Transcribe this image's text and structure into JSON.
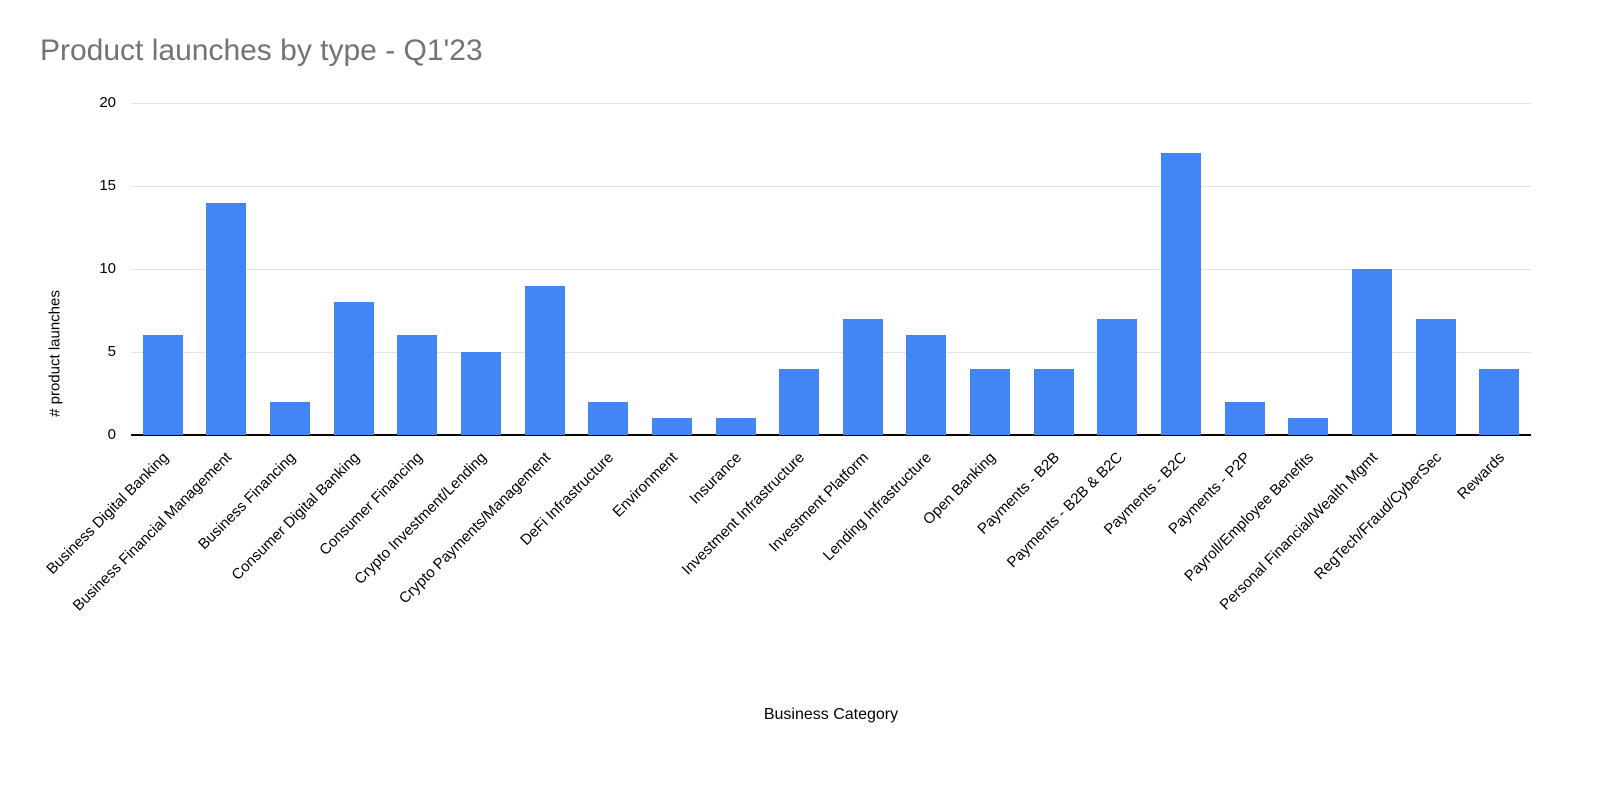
{
  "chart_data": {
    "type": "bar",
    "title": "Product launches by type - Q1'23",
    "xlabel": "Business Category",
    "ylabel": "# product launches",
    "categories": [
      "Business Digital Banking",
      "Business Financial Management",
      "Business Financing",
      "Consumer Digital Banking",
      "Consumer Financing",
      "Crypto Investment/Lending",
      "Crypto Payments/Management",
      "DeFi Infrastructure",
      "Environment",
      "Insurance",
      "Investment Infrastructure",
      "Investment Platform",
      "Lending Infrastructure",
      "Open Banking",
      "Payments - B2B",
      "Payments - B2B & B2C",
      "Payments - B2C",
      "Payments - P2P",
      "Payroll/Employee Benefits",
      "Personal Financial/Wealth Mgmt",
      "RegTech/Fraud/CyberSec",
      "Rewards"
    ],
    "values": [
      6,
      14,
      2,
      8,
      6,
      5,
      9,
      2,
      1,
      1,
      4,
      7,
      6,
      4,
      4,
      7,
      17,
      2,
      1,
      10,
      7,
      4
    ],
    "ylim": [
      0,
      20
    ],
    "yticks": [
      0,
      5,
      10,
      15,
      20
    ],
    "grid": true,
    "legend": "none",
    "colors": {
      "bar": "#4285f4",
      "title": "#737373",
      "gridline": "#e3e3e3",
      "baseline": "#000000",
      "axis_text": "#000000",
      "background": "#ffffff"
    }
  }
}
